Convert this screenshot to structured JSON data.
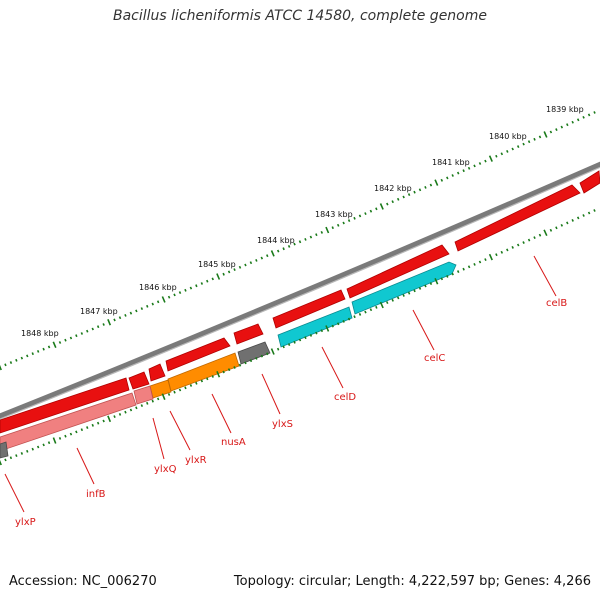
{
  "header": {
    "title": "Bacillus licheniformis ATCC 14580, complete genome"
  },
  "footer": {
    "accession": "Accession: NC_006270",
    "summary": "Topology: circular; Length: 4,222,597 bp; Genes: 4,266"
  },
  "colors": {
    "backbone": "#7a7a7a",
    "forward_cds": "#e81010",
    "reverse_cds_cyan": "#10c8d0",
    "orange_cds": "#ff8c00",
    "pink_cds": "#f08080",
    "grey_cds": "#707070",
    "tick": "#1a7a1a",
    "label": "#d81818"
  },
  "kbp_labels": [
    "1839 kbp",
    "1840 kbp",
    "1841 kbp",
    "1842 kbp",
    "1843 kbp",
    "1844 kbp",
    "1845 kbp",
    "1846 kbp",
    "1847 kbp",
    "1848 kbp"
  ],
  "gene_labels": [
    "celB",
    "celC",
    "celD",
    "ylxS",
    "nusA",
    "ylxR",
    "ylxQ",
    "infB",
    "ylxP"
  ]
}
